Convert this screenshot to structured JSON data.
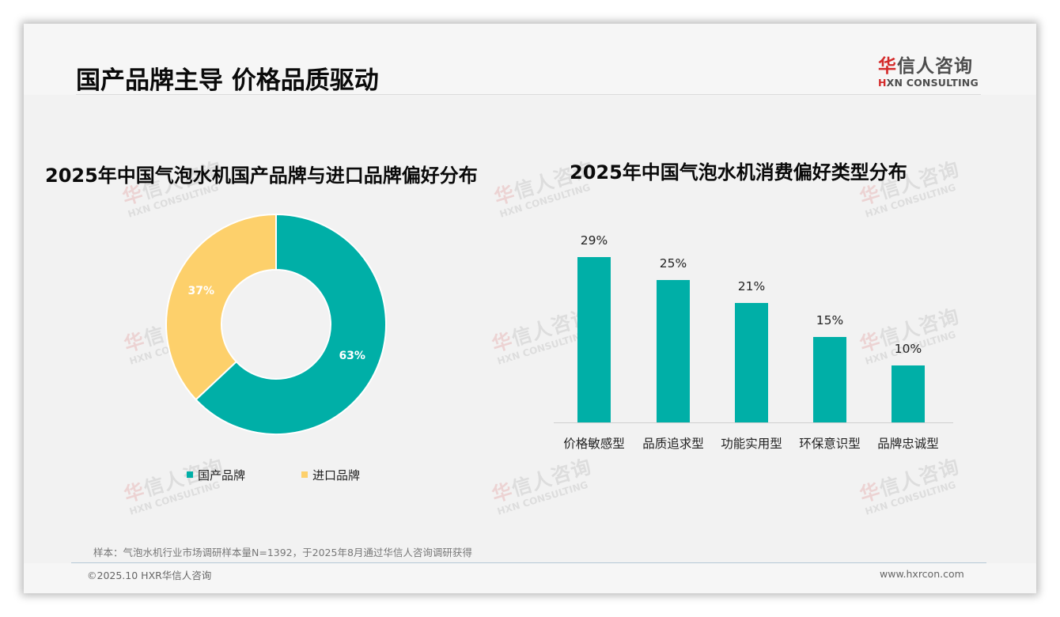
{
  "header": {
    "title": "国产品牌主导 价格品质驱动",
    "logo": {
      "cn_red": "华",
      "cn_rest": "信人咨询",
      "en_mark": "H",
      "en_rest": "XN CONSULTING"
    }
  },
  "watermark": {
    "cn_red": "华",
    "cn_rest": "信人咨询",
    "en": "HXN CONSULTING"
  },
  "colors": {
    "teal": "#00afa7",
    "yellow": "#fdd06b",
    "title": "#0a0a0a",
    "logo_red": "#d42a2a"
  },
  "donut": {
    "title": "2025年中国气泡水机国产品牌与进口品牌偏好分布",
    "slices": [
      {
        "label": "国产品牌",
        "value": 63,
        "display": "63%",
        "color": "#00afa7"
      },
      {
        "label": "进口品牌",
        "value": 37,
        "display": "37%",
        "color": "#fdd06b"
      }
    ]
  },
  "bars": {
    "title": "2025年中国气泡水机消费偏好类型分布",
    "items": [
      {
        "category": "价格敏感型",
        "value": 29,
        "display": "29%"
      },
      {
        "category": "品质追求型",
        "value": 25,
        "display": "25%"
      },
      {
        "category": "功能实用型",
        "value": 21,
        "display": "21%"
      },
      {
        "category": "环保意识型",
        "value": 15,
        "display": "15%"
      },
      {
        "category": "品牌忠诚型",
        "value": 10,
        "display": "10%"
      }
    ]
  },
  "chart_data": [
    {
      "type": "pie",
      "title": "2025年中国气泡水机国产品牌与进口品牌偏好分布",
      "categories": [
        "国产品牌",
        "进口品牌"
      ],
      "values": [
        63,
        37
      ],
      "unit": "%",
      "donut": true,
      "legend_position": "bottom",
      "colors": [
        "#00afa7",
        "#fdd06b"
      ]
    },
    {
      "type": "bar",
      "title": "2025年中国气泡水机消费偏好类型分布",
      "categories": [
        "价格敏感型",
        "品质追求型",
        "功能实用型",
        "环保意识型",
        "品牌忠诚型"
      ],
      "values": [
        29,
        25,
        21,
        15,
        10
      ],
      "unit": "%",
      "xlabel": "",
      "ylabel": "",
      "grid": false,
      "data_labels": true,
      "colors": [
        "#00afa7"
      ]
    }
  ],
  "footer": {
    "footnote": "样本：气泡水机行业市场调研样本量N=1392，于2025年8月通过华信人咨询调研获得",
    "copyright": "©2025.10 HXR华信人咨询",
    "website": "www.hxrcon.com"
  }
}
